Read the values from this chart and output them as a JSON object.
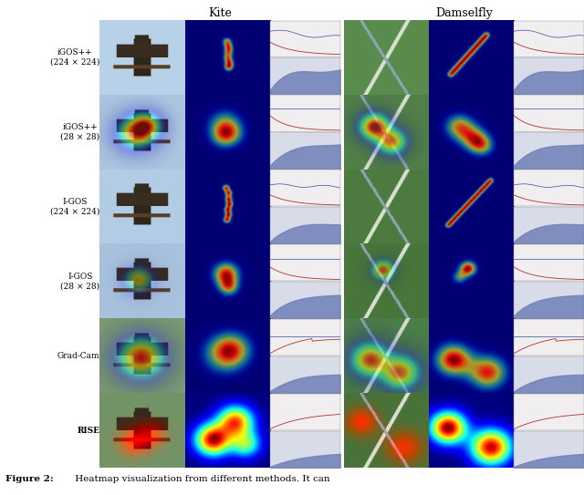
{
  "fig_width": 6.4,
  "fig_height": 5.43,
  "background_color": "#ffffff",
  "row_labels": [
    "iGOS++\n(224 × 224)",
    "iGOS++\n(28 × 28)",
    "I-GOS\n(224 × 224)",
    "I-GOS\n(28 × 28)",
    "Grad-Cam",
    "RISE"
  ],
  "col_headers": [
    "Kite",
    "Damselfly"
  ],
  "caption_bold": "Figure 2:",
  "caption_normal": " Heatmap visualization from different methods. It can"
}
